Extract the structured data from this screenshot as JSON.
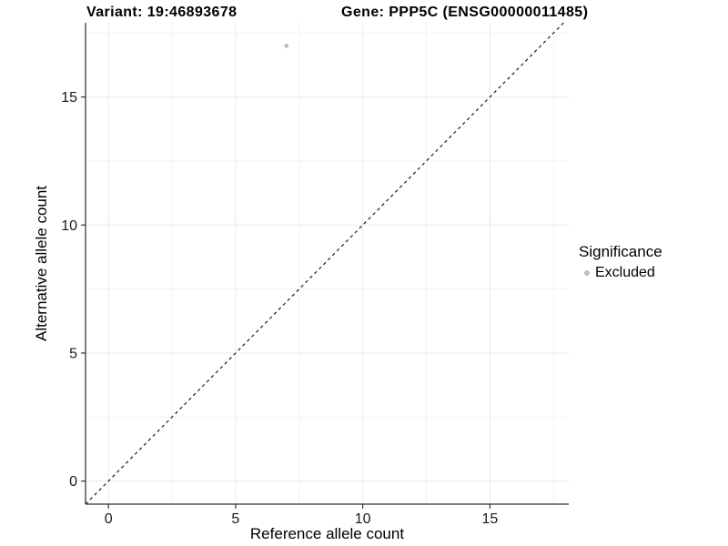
{
  "title": {
    "variant": "Variant: 19:46893678",
    "gene": "Gene: PPP5C (ENSG00000011485)"
  },
  "legend": {
    "title": "Significance",
    "items": [
      {
        "label": "Excluded",
        "color": "#bdbdbd",
        "marker": "circle-icon"
      }
    ]
  },
  "colors": {
    "point": "#bdbdbd",
    "grid_major": "#e9e9e9",
    "grid_minor": "#f3f3f3",
    "axis_line": "#2b2b2b",
    "tick_mark": "#333333",
    "tick_label": "#1a1a1a",
    "axis_title": "#000000",
    "reference_line": "#1a1a1a",
    "background": "#ffffff"
  },
  "chart_data": {
    "type": "scatter",
    "title": "Variant: 19:46893678    Gene: PPP5C (ENSG00000011485)",
    "xlabel": "Reference allele count",
    "ylabel": "Alternative allele count",
    "xlim": [
      -0.9,
      18.1
    ],
    "ylim": [
      -0.9,
      17.9
    ],
    "x_major_ticks": [
      0,
      5,
      10,
      15
    ],
    "y_major_ticks": [
      0,
      5,
      10,
      15
    ],
    "x_minor_ticks": [
      2.5,
      7.5,
      12.5,
      17.5
    ],
    "y_minor_ticks": [
      2.5,
      7.5,
      12.5,
      17.5
    ],
    "grid": true,
    "legend_position": "right",
    "series": [
      {
        "name": "Excluded",
        "color": "#bdbdbd",
        "points": [
          {
            "x": 7,
            "y": 17
          }
        ]
      }
    ],
    "reference_line": {
      "kind": "identity",
      "slope": 1,
      "intercept": 0,
      "style": "dashed",
      "color": "#1a1a1a"
    }
  }
}
